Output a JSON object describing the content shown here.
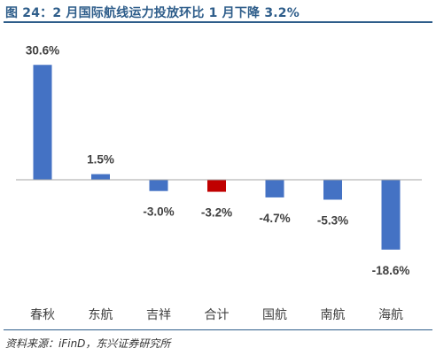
{
  "title": "图 24：2 月国际航线运力投放环比 1 月下降 3.2%",
  "source": "资料来源：iFinD，东兴证券研究所",
  "colors": {
    "positive_bar": "#4472c4",
    "highlight_bar": "#c00000",
    "axis": "#a6a6a6",
    "text": "#404040",
    "title": "#2e5d8a"
  },
  "chart_data": {
    "type": "bar",
    "title": "图 24：2 月国际航线运力投放环比 1 月下降 3.2%",
    "xlabel": "",
    "ylabel": "",
    "categories": [
      "春秋",
      "东航",
      "吉祥",
      "合计",
      "国航",
      "南航",
      "海航"
    ],
    "values": [
      30.6,
      1.5,
      -3.0,
      -3.2,
      -4.7,
      -5.3,
      -18.6
    ],
    "value_labels": [
      "30.6%",
      "1.5%",
      "-3.0%",
      "-3.2%",
      "-4.7%",
      "-5.3%",
      "-18.6%"
    ],
    "highlight_index": 3,
    "ylim": [
      -20,
      33
    ],
    "grid": false,
    "legend": "none"
  }
}
